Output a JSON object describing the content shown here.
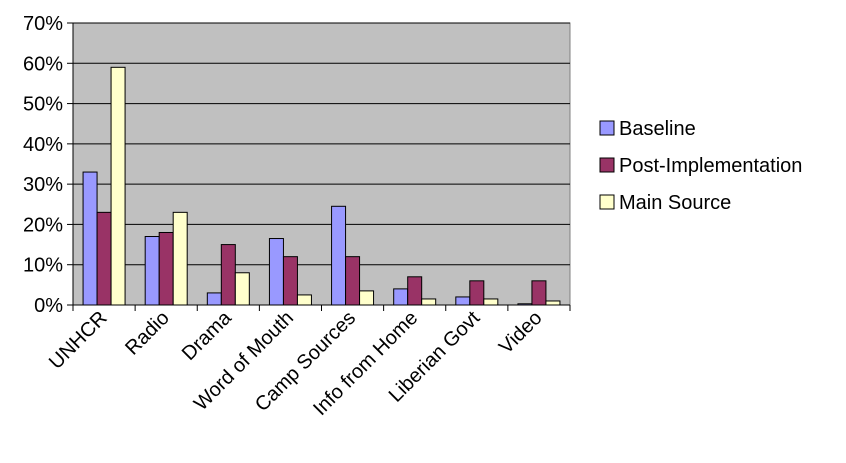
{
  "chart_data": {
    "type": "bar",
    "title": "",
    "xlabel": "",
    "ylabel": "",
    "ylim": [
      0,
      0.7
    ],
    "y_ticks": [
      "0%",
      "10%",
      "20%",
      "30%",
      "40%",
      "50%",
      "60%",
      "70%"
    ],
    "y_tick_values": [
      0,
      0.1,
      0.2,
      0.3,
      0.4,
      0.5,
      0.6,
      0.7
    ],
    "grid": true,
    "legend_position": "right",
    "categories": [
      "UNHCR",
      "Radio",
      "Drama",
      "Word of Mouth",
      "Camp Sources",
      "Info from Home",
      "Liberian Govt",
      "Video"
    ],
    "series": [
      {
        "name": "Baseline",
        "color": "#9999FF",
        "values": [
          0.33,
          0.17,
          0.03,
          0.165,
          0.245,
          0.04,
          0.02,
          0.003
        ]
      },
      {
        "name": "Post-Implementation",
        "color": "#993366",
        "values": [
          0.23,
          0.18,
          0.15,
          0.12,
          0.12,
          0.07,
          0.06,
          0.06
        ]
      },
      {
        "name": "Main Source",
        "color": "#FFFFCC",
        "values": [
          0.59,
          0.23,
          0.08,
          0.025,
          0.035,
          0.015,
          0.015,
          0.01
        ]
      }
    ],
    "plot_background": "#C0C0C0"
  }
}
